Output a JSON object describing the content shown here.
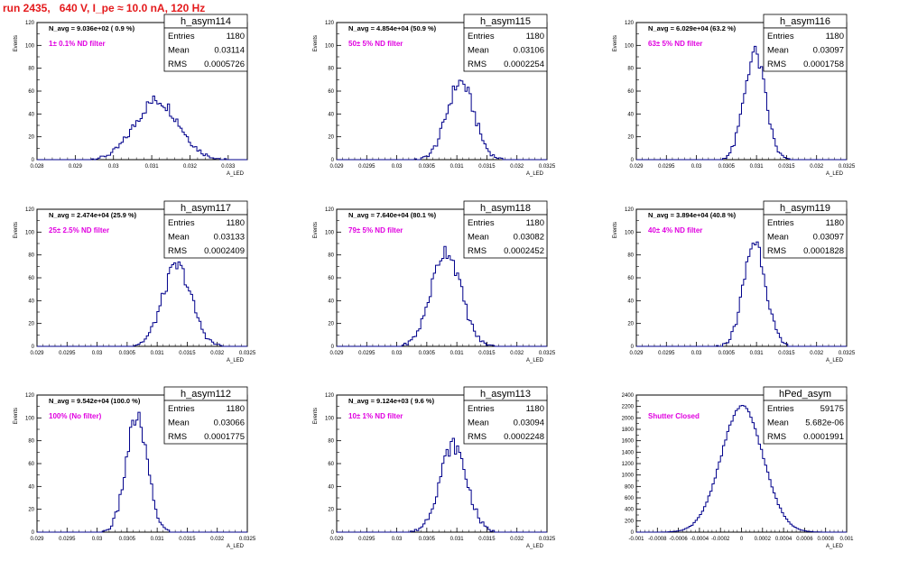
{
  "page_title": "run 2435,   640 V, I_pe ≈ 10.0 nA, 120 Hz",
  "colors": {
    "title": "#e41a1c",
    "histogram": "#00008b",
    "filter_label": "#e000e0"
  },
  "chart_data": [
    {
      "type": "histogram",
      "name": "h_asym114",
      "navg": "N_avg = 9.036e+02 ( 0.9 %)",
      "filter": "1± 0.1% ND filter",
      "stats": {
        "Entries": "1180",
        "Mean": "0.03114",
        "RMS": "0.0005726"
      },
      "xlim": [
        0.028,
        0.0335
      ],
      "ylim": [
        0,
        120
      ],
      "xticks": [
        0.028,
        0.029,
        0.03,
        0.031,
        0.032,
        0.033
      ],
      "xtick_labels": [
        "0.028",
        "0.029",
        "0.03",
        "0.031",
        "0.032",
        "0.033"
      ],
      "yticks": [
        0,
        20,
        40,
        60,
        80,
        100,
        120
      ],
      "xlabel": "A_LED",
      "ylabel": "Events",
      "mean": 0.03114,
      "sigma": 0.0005726,
      "peak": 52,
      "entries": 1180
    },
    {
      "type": "histogram",
      "name": "h_asym115",
      "navg": "N_avg = 4.854e+04 (50.9 %)",
      "filter": "50± 5% ND filter",
      "stats": {
        "Entries": "1180",
        "Mean": "0.03106",
        "RMS": "0.0002254"
      },
      "xlim": [
        0.029,
        0.0325
      ],
      "ylim": [
        0,
        120
      ],
      "xticks": [
        0.029,
        0.0295,
        0.03,
        0.0305,
        0.031,
        0.0315,
        0.032,
        0.0325
      ],
      "xtick_labels": [
        "0.029",
        "0.0295",
        "0.03",
        "0.0305",
        "0.031",
        "0.0315",
        "0.032",
        "0.0325"
      ],
      "yticks": [
        0,
        20,
        40,
        60,
        80,
        100,
        120
      ],
      "xlabel": "A_LED",
      "ylabel": "Events",
      "mean": 0.03106,
      "sigma": 0.0002254,
      "peak": 68,
      "entries": 1180
    },
    {
      "type": "histogram",
      "name": "h_asym116",
      "navg": "N_avg = 6.029e+04 (63.2 %)",
      "filter": "63± 5% ND filter",
      "stats": {
        "Entries": "1180",
        "Mean": "0.03097",
        "RMS": "0.0001758"
      },
      "xlim": [
        0.029,
        0.0325
      ],
      "ylim": [
        0,
        120
      ],
      "xticks": [
        0.029,
        0.0295,
        0.03,
        0.0305,
        0.031,
        0.0315,
        0.032,
        0.0325
      ],
      "xtick_labels": [
        "0.029",
        "0.0295",
        "0.03",
        "0.0305",
        "0.031",
        "0.0315",
        "0.032",
        "0.0325"
      ],
      "yticks": [
        0,
        20,
        40,
        60,
        80,
        100,
        120
      ],
      "xlabel": "A_LED",
      "ylabel": "Events",
      "mean": 0.03097,
      "sigma": 0.0001758,
      "peak": 93,
      "entries": 1180
    },
    {
      "type": "histogram",
      "name": "h_asym117",
      "navg": "N_avg = 2.474e+04 (25.9 %)",
      "filter": "25± 2.5% ND filter",
      "stats": {
        "Entries": "1180",
        "Mean": "0.03133",
        "RMS": "0.0002409"
      },
      "xlim": [
        0.029,
        0.0325
      ],
      "ylim": [
        0,
        120
      ],
      "xticks": [
        0.029,
        0.0295,
        0.03,
        0.0305,
        0.031,
        0.0315,
        0.032,
        0.0325
      ],
      "xtick_labels": [
        "0.029",
        "0.0295",
        "0.03",
        "0.0305",
        "0.031",
        "0.0315",
        "0.032",
        "0.0325"
      ],
      "yticks": [
        0,
        20,
        40,
        60,
        80,
        100,
        120
      ],
      "xlabel": "A_LED",
      "ylabel": "Events",
      "mean": 0.03133,
      "sigma": 0.0002409,
      "peak": 70,
      "entries": 1180
    },
    {
      "type": "histogram",
      "name": "h_asym118",
      "navg": "N_avg = 7.640e+04 (80.1 %)",
      "filter": "79± 5% ND filter",
      "stats": {
        "Entries": "1180",
        "Mean": "0.03082",
        "RMS": "0.0002452"
      },
      "xlim": [
        0.029,
        0.0325
      ],
      "ylim": [
        0,
        120
      ],
      "xticks": [
        0.029,
        0.0295,
        0.03,
        0.0305,
        0.031,
        0.0315,
        0.032,
        0.0325
      ],
      "xtick_labels": [
        "0.029",
        "0.0295",
        "0.03",
        "0.0305",
        "0.031",
        "0.0315",
        "0.032",
        "0.0325"
      ],
      "yticks": [
        0,
        20,
        40,
        60,
        80,
        100,
        120
      ],
      "xlabel": "A_LED",
      "ylabel": "Events",
      "mean": 0.03082,
      "sigma": 0.0002452,
      "peak": 84,
      "entries": 1180
    },
    {
      "type": "histogram",
      "name": "h_asym119",
      "navg": "N_avg = 3.894e+04 (40.8 %)",
      "filter": "40± 4% ND filter",
      "stats": {
        "Entries": "1180",
        "Mean": "0.03097",
        "RMS": "0.0001828"
      },
      "xlim": [
        0.029,
        0.0325
      ],
      "ylim": [
        0,
        120
      ],
      "xticks": [
        0.029,
        0.0295,
        0.03,
        0.0305,
        0.031,
        0.0315,
        0.032,
        0.0325
      ],
      "xtick_labels": [
        "0.029",
        "0.0295",
        "0.03",
        "0.0305",
        "0.031",
        "0.0315",
        "0.032",
        "0.0325"
      ],
      "yticks": [
        0,
        20,
        40,
        60,
        80,
        100,
        120
      ],
      "xlabel": "A_LED",
      "ylabel": "Events",
      "mean": 0.03097,
      "sigma": 0.0001828,
      "peak": 92,
      "entries": 1180
    },
    {
      "type": "histogram",
      "name": "h_asym112",
      "navg": "N_avg = 9.542e+04 (100.0 %)",
      "filter": "100% (No filter)",
      "stats": {
        "Entries": "1180",
        "Mean": "0.03066",
        "RMS": "0.0001775"
      },
      "xlim": [
        0.029,
        0.0325
      ],
      "ylim": [
        0,
        120
      ],
      "xticks": [
        0.029,
        0.0295,
        0.03,
        0.0305,
        0.031,
        0.0315,
        0.032,
        0.0325
      ],
      "xtick_labels": [
        "0.029",
        "0.0295",
        "0.03",
        "0.0305",
        "0.031",
        "0.0315",
        "0.032",
        "0.0325"
      ],
      "yticks": [
        0,
        20,
        40,
        60,
        80,
        100,
        120
      ],
      "xlabel": "A_LED",
      "ylabel": "Events",
      "mean": 0.03066,
      "sigma": 0.0001775,
      "peak": 100,
      "entries": 1180
    },
    {
      "type": "histogram",
      "name": "h_asym113",
      "navg": "N_avg = 9.124e+03 ( 9.6 %)",
      "filter": "10± 1% ND filter",
      "stats": {
        "Entries": "1180",
        "Mean": "0.03094",
        "RMS": "0.0002248"
      },
      "xlim": [
        0.029,
        0.0325
      ],
      "ylim": [
        0,
        120
      ],
      "xticks": [
        0.029,
        0.0295,
        0.03,
        0.0305,
        0.031,
        0.0315,
        0.032,
        0.0325
      ],
      "xtick_labels": [
        "0.029",
        "0.0295",
        "0.03",
        "0.0305",
        "0.031",
        "0.0315",
        "0.032",
        "0.0325"
      ],
      "yticks": [
        0,
        20,
        40,
        60,
        80,
        100,
        120
      ],
      "xlabel": "A_LED",
      "ylabel": "Events",
      "mean": 0.03094,
      "sigma": 0.0002248,
      "peak": 76,
      "entries": 1180
    },
    {
      "type": "histogram",
      "name": "hPed_asym",
      "navg": "",
      "filter": "Shutter Closed",
      "stats": {
        "Entries": "59175",
        "Mean": "5.682e-06",
        "RMS": "0.0001991"
      },
      "xlim": [
        -0.001,
        0.001
      ],
      "ylim": [
        0,
        2400
      ],
      "xticks": [
        -0.001,
        -0.0008,
        -0.0006,
        -0.0004,
        -0.0002,
        0,
        0.0002,
        0.0004,
        0.0006,
        0.0008,
        0.001
      ],
      "xtick_labels": [
        "-0.001",
        "-0.0008",
        "-0.0006",
        "-0.0004",
        "-0.0002",
        "0",
        "0.0002",
        "0.0004",
        "0.0006",
        "0.0008",
        "0.001"
      ],
      "yticks": [
        0,
        200,
        400,
        600,
        800,
        1000,
        1200,
        1400,
        1600,
        1800,
        2000,
        2200,
        2400
      ],
      "xlabel": "A_LED",
      "ylabel": "",
      "mean": 5.682e-06,
      "sigma": 0.0001991,
      "peak": 2200,
      "entries": 59175
    }
  ]
}
